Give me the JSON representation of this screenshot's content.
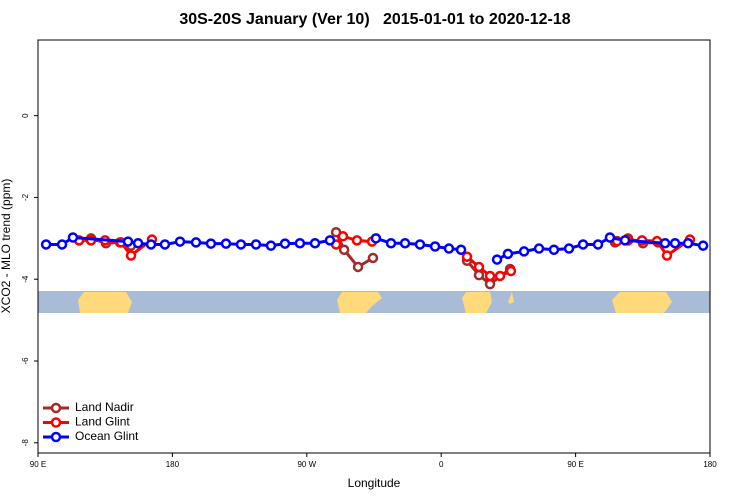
{
  "chart_data": {
    "type": "line",
    "title": "30S-20S January (Ver 10)   2015-01-01 to 2020-12-18",
    "xlabel": "Longitude",
    "ylabel": "XCO2 - MLO trend (ppm)",
    "xlim": [
      90,
      540
    ],
    "xticks": [
      {
        "value": 90,
        "label": "90 E"
      },
      180,
      {
        "value": 270,
        "label": "90 W"
      },
      {
        "value": 360,
        "label": "0"
      },
      {
        "value": 450,
        "label": "90 E"
      },
      {
        "value": 540,
        "label": "180"
      }
    ],
    "ylim": [
      -8.25,
      1.85
    ],
    "yticks": [
      0,
      -2,
      -4,
      -6,
      -8
    ],
    "legend": "lower left",
    "series": [
      {
        "name": "Land Nadir",
        "color": "#a52a2a",
        "x": [
          125.5,
          135.5,
          144.9,
          152.3,
          220,
          289.6,
          295.0,
          304.3,
          314.3,
          345,
          377.3,
          385.3,
          392.7,
          406.1,
          440,
          476.4,
          485.1,
          495.1,
          505.2
        ],
        "values": [
          -3.0,
          -3.12,
          -3.1,
          -3.18,
          null,
          -2.85,
          -3.28,
          -3.7,
          -3.48,
          null,
          -3.55,
          -3.9,
          -4.12,
          -3.75,
          null,
          -3.1,
          -3.0,
          -3.12,
          -3.1
        ]
      },
      {
        "name": "Land Glint",
        "color": "#ff0000",
        "x": [
          117.5,
          125.5,
          134.9,
          145.6,
          152.3,
          166.3,
          230,
          289.6,
          294.2,
          303.6,
          313.7,
          345,
          377.3,
          385.3,
          392.7,
          399.4,
          406.7,
          440,
          477.7,
          485.1,
          494.5,
          504.5,
          511.2,
          526.6
        ],
        "values": [
          -3.05,
          -3.05,
          -3.05,
          -3.1,
          -3.42,
          -3.03,
          null,
          -3.15,
          -2.95,
          -3.05,
          -3.08,
          null,
          -3.45,
          -3.7,
          -3.92,
          -3.92,
          -3.8,
          null,
          -3.07,
          -3.05,
          -3.05,
          -3.07,
          -3.42,
          -3.03
        ]
      },
      {
        "name": "Ocean Glint",
        "color": "#0000ff",
        "x": [
          95.4,
          106.1,
          113.4,
          150.3,
          157.0,
          165.7,
          175.0,
          185.1,
          195.8,
          205.8,
          215.9,
          225.9,
          236.0,
          246.0,
          255.4,
          265.4,
          275.5,
          285.5,
          300,
          316.3,
          326.4,
          335.8,
          345.8,
          355.9,
          365.2,
          373.3,
          385,
          397.4,
          404.7,
          415.5,
          425.5,
          435.5,
          445.6,
          455.0,
          465.0,
          473.0,
          483.1,
          509.9,
          516.6,
          525.3,
          535.4
        ],
        "values": [
          -3.15,
          -3.15,
          -2.98,
          -3.08,
          -3.12,
          -3.15,
          -3.15,
          -3.08,
          -3.1,
          -3.13,
          -3.13,
          -3.15,
          -3.15,
          -3.18,
          -3.13,
          -3.12,
          -3.12,
          -3.05,
          null,
          -3.0,
          -3.12,
          -3.12,
          -3.15,
          -3.2,
          -3.25,
          -3.28,
          null,
          -3.52,
          -3.38,
          -3.32,
          -3.25,
          -3.28,
          -3.25,
          -3.15,
          -3.15,
          -2.98,
          -3.05,
          -3.12,
          -3.12,
          -3.12,
          -3.18
        ]
      }
    ]
  }
}
